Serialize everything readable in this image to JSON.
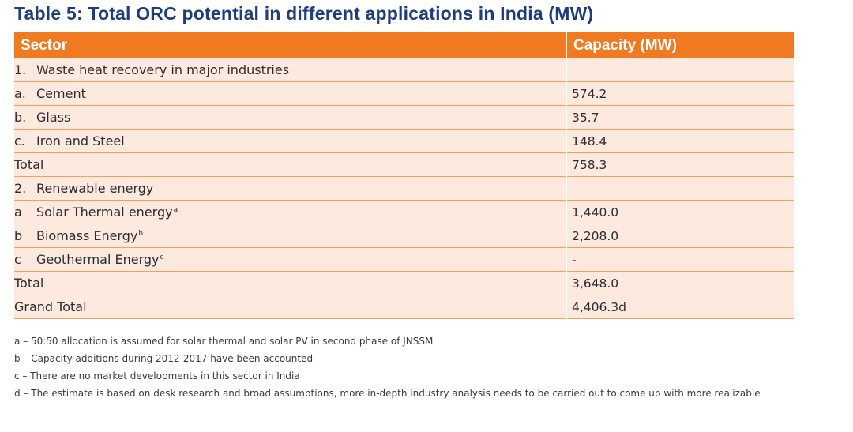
{
  "title": "Table 5: Total ORC potential in different applications in India (MW)",
  "table": {
    "headers": [
      "Sector",
      "Capacity (MW)"
    ],
    "rows": [
      {
        "marker": "1.",
        "label": "Waste heat recovery in major industries",
        "value": ""
      },
      {
        "marker": "a.",
        "label": "Cement",
        "value": "574.2"
      },
      {
        "marker": "b.",
        "label": "Glass",
        "value": "35.7"
      },
      {
        "marker": "c.",
        "label": "Iron and Steel",
        "value": "148.4"
      },
      {
        "marker": "",
        "label": "Total",
        "value": "758.3"
      },
      {
        "marker": "2.",
        "label": "Renewable energy",
        "value": ""
      },
      {
        "marker": "a",
        "label": "Solar Thermal energy",
        "sup": "a",
        "value": "1,440.0"
      },
      {
        "marker": "b",
        "label": "Biomass Energy",
        "sup": "b",
        "value": "2,208.0"
      },
      {
        "marker": "c",
        "label": "Geothermal Energy",
        "sup": "c",
        "value": "-"
      },
      {
        "marker": "",
        "label": "Total",
        "value": "3,648.0"
      },
      {
        "marker": "",
        "label": "Grand Total",
        "value": "4,406.3d"
      }
    ]
  },
  "notes": [
    "a – 50:50 allocation is assumed for solar thermal and solar PV in second phase of JNSSM",
    "b – Capacity additions during 2012-2017 have been accounted",
    "c – There are no market developments in this sector in India",
    "d – The estimate is based on desk research and broad assumptions, more in-depth industry analysis needs to be carried out to come up with more realizable"
  ],
  "colors": {
    "header_bg": "#f07a22",
    "row_bg": "#fde9dd",
    "title": "#1f3d7a"
  }
}
